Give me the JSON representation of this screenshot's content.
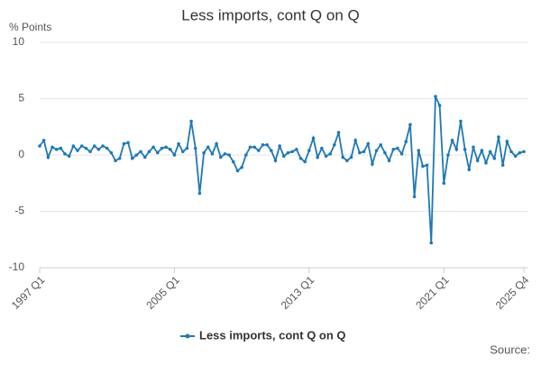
{
  "chart_data": {
    "type": "line",
    "title": "Less imports, cont Q on Q",
    "y_label": "% Points",
    "source": "Source:",
    "categories": [
      "1997 Q1",
      null,
      null,
      null,
      null,
      null,
      null,
      null,
      null,
      null,
      null,
      null,
      null,
      null,
      null,
      null,
      null,
      null,
      null,
      null,
      null,
      null,
      null,
      null,
      null,
      null,
      null,
      null,
      null,
      null,
      null,
      null,
      "2005 Q1",
      null,
      null,
      null,
      null,
      null,
      null,
      null,
      null,
      null,
      null,
      null,
      null,
      null,
      null,
      null,
      null,
      null,
      null,
      null,
      null,
      null,
      null,
      null,
      null,
      null,
      null,
      null,
      null,
      null,
      null,
      null,
      "2013 Q1",
      null,
      null,
      null,
      null,
      null,
      null,
      null,
      null,
      null,
      null,
      null,
      null,
      null,
      null,
      null,
      null,
      null,
      null,
      null,
      null,
      null,
      null,
      null,
      null,
      null,
      null,
      null,
      null,
      null,
      null,
      null,
      "2021 Q1",
      null,
      null,
      null,
      null,
      null,
      null,
      null,
      null,
      null,
      null,
      null,
      null,
      null,
      null,
      null,
      null,
      null,
      null,
      "2025 Q4"
    ],
    "series": [
      {
        "name": "Less imports, cont Q on Q",
        "color": "#1f78b4",
        "values": [
          0.8,
          1.3,
          -0.2,
          0.7,
          0.5,
          0.6,
          0.1,
          -0.1,
          0.8,
          0.4,
          0.8,
          0.6,
          0.3,
          0.8,
          0.5,
          0.8,
          0.6,
          0.2,
          -0.5,
          -0.3,
          1.0,
          1.1,
          -0.3,
          0.0,
          0.3,
          -0.2,
          0.3,
          0.7,
          0.2,
          0.6,
          0.7,
          0.5,
          0.0,
          1.0,
          0.3,
          0.6,
          3.0,
          0.6,
          -3.4,
          0.2,
          0.7,
          0.1,
          1.0,
          -0.2,
          0.1,
          0.0,
          -0.6,
          -1.4,
          -1.1,
          0.0,
          0.7,
          0.7,
          0.4,
          0.9,
          0.9,
          0.4,
          -0.5,
          0.8,
          -0.1,
          0.2,
          0.3,
          0.5,
          -0.3,
          -0.6,
          0.4,
          1.5,
          -0.2,
          0.6,
          -0.1,
          0.1,
          0.9,
          2.0,
          -0.2,
          -0.5,
          -0.2,
          1.3,
          0.2,
          0.3,
          1.0,
          -0.8,
          0.4,
          0.9,
          0.2,
          -0.5,
          0.5,
          0.6,
          0.1,
          1.2,
          2.7,
          -3.7,
          0.4,
          -1.0,
          -0.9,
          -7.8,
          5.2,
          4.4,
          -2.5,
          0.0,
          1.3,
          0.5,
          3.0,
          0.5,
          -1.3,
          0.7,
          -0.5,
          0.4,
          -0.7,
          0.3,
          -0.3,
          1.6,
          -0.9,
          1.2,
          0.3,
          -0.1,
          0.2,
          0.3
        ]
      }
    ],
    "ylim": [
      -10,
      10
    ],
    "yticks": [
      10,
      5,
      0,
      -5,
      -10
    ],
    "grid": true
  }
}
